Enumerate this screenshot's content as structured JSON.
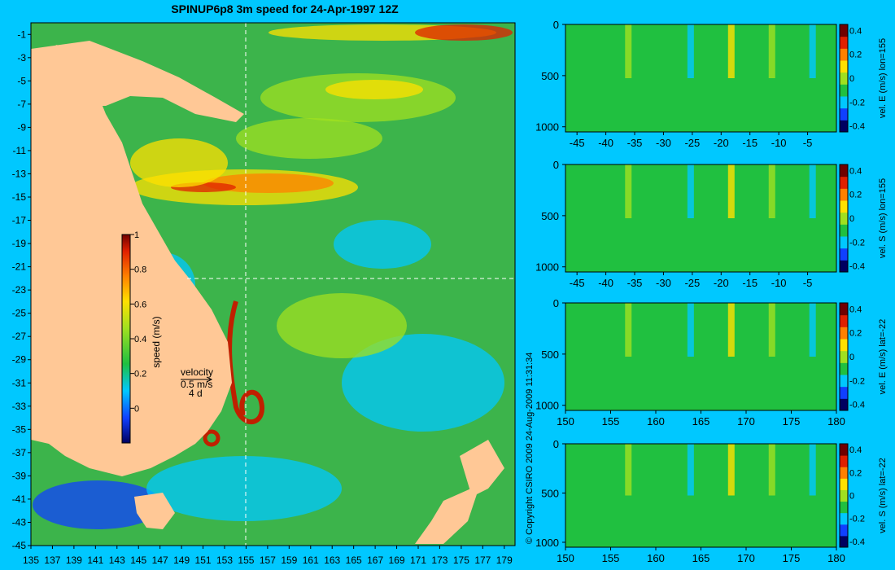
{
  "title": "SPINUP6p8 3m speed for 24-Apr-1997 12Z",
  "copyright": "© Copyright CSIRO 2009   24-Aug-2009 11:31:34",
  "colors": {
    "background": "#00c8ff",
    "land": "#ffc896",
    "section_land": "#c8a882"
  },
  "chart_data": [
    {
      "type": "heatmap",
      "name": "map",
      "x_ticks": [
        "135",
        "137",
        "139",
        "141",
        "143",
        "145",
        "147",
        "149",
        "151",
        "153",
        "155",
        "157",
        "159",
        "161",
        "163",
        "165",
        "167",
        "169",
        "171",
        "173",
        "175",
        "177",
        "179"
      ],
      "y_ticks": [
        "-1",
        "-3",
        "-5",
        "-7",
        "-9",
        "-11",
        "-13",
        "-15",
        "-17",
        "-19",
        "-21",
        "-23",
        "-25",
        "-27",
        "-29",
        "-31",
        "-33",
        "-35",
        "-37",
        "-39",
        "-41",
        "-43",
        "-45"
      ],
      "xlim": [
        135,
        180
      ],
      "ylim": [
        -45,
        0
      ],
      "colorbar": {
        "label": "speed (m/s)",
        "ticks": [
          "0",
          "0.2",
          "0.4",
          "0.6",
          "0.8",
          "1"
        ],
        "range": [
          -0.2,
          1
        ]
      },
      "vector_legend": {
        "title": "velocity",
        "scale": "0.5 m/s",
        "time": "4 d"
      },
      "section_lines": {
        "lon": 155,
        "lat": -22
      }
    },
    {
      "type": "heatmap",
      "name": "section-1",
      "label": "vel. E (m/s) lon=155",
      "x_ticks": [
        "-45",
        "-40",
        "-35",
        "-30",
        "-25",
        "-20",
        "-15",
        "-10",
        "-5"
      ],
      "y_ticks": [
        "0",
        "500",
        "1000"
      ],
      "colorbar_ticks": [
        "0.4",
        "0.2",
        "0",
        "-0.2",
        "-0.4"
      ],
      "range": [
        -0.45,
        0.45
      ]
    },
    {
      "type": "heatmap",
      "name": "section-2",
      "label": "vel. S (m/s) lon=155",
      "x_ticks": [
        "-45",
        "-40",
        "-35",
        "-30",
        "-25",
        "-20",
        "-15",
        "-10",
        "-5"
      ],
      "y_ticks": [
        "0",
        "500",
        "1000"
      ],
      "colorbar_ticks": [
        "0.4",
        "0.2",
        "0",
        "-0.2",
        "-0.4"
      ],
      "range": [
        -0.45,
        0.45
      ]
    },
    {
      "type": "heatmap",
      "name": "section-3",
      "label": "vel. E (m/s) lat=-22",
      "x_ticks": [
        "150",
        "155",
        "160",
        "165",
        "170",
        "175",
        "180"
      ],
      "y_ticks": [
        "0",
        "500",
        "1000"
      ],
      "colorbar_ticks": [
        "0.4",
        "0.2",
        "0",
        "-0.2",
        "-0.4"
      ],
      "range": [
        -0.45,
        0.45
      ]
    },
    {
      "type": "heatmap",
      "name": "section-4",
      "label": "vel. S (m/s) lat=-22",
      "x_ticks": [
        "150",
        "155",
        "160",
        "165",
        "170",
        "175",
        "180"
      ],
      "y_ticks": [
        "0",
        "500",
        "1000"
      ],
      "colorbar_ticks": [
        "0.4",
        "0.2",
        "0",
        "-0.2",
        "-0.4"
      ],
      "range": [
        -0.45,
        0.45
      ]
    }
  ]
}
